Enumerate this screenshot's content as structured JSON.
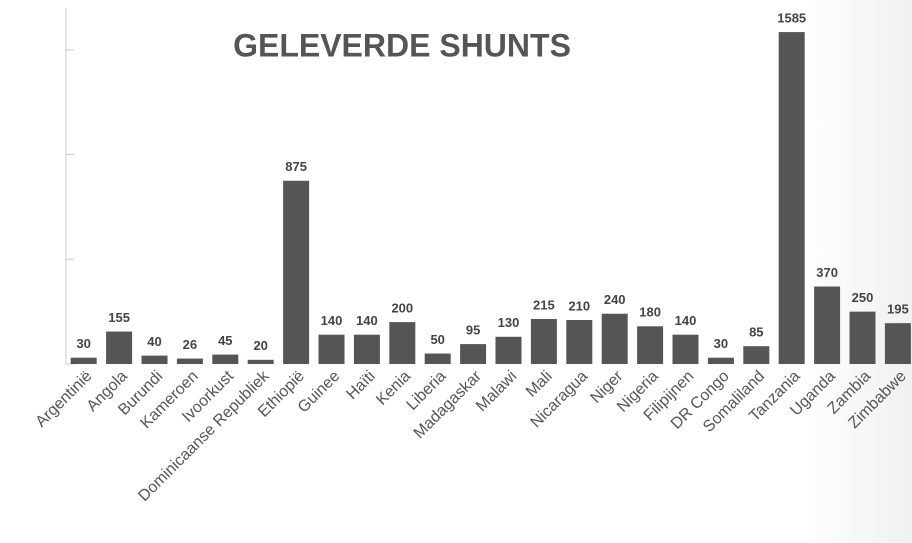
{
  "chart_data": {
    "type": "bar",
    "title": "GELEVERDE SHUNTS",
    "categories": [
      "Argentinië",
      "Angola",
      "Burundi",
      "Kameroen",
      "Ivoorkust",
      "Dominicaanse Republiek",
      "Ethiopië",
      "Guinee",
      "Haïti",
      "Kenia",
      "Liberia",
      "Madagaskar",
      "Malawi",
      "Mali",
      "Nicaragua",
      "Niger",
      "Nigeria",
      "Filipijnen",
      "DR Congo",
      "Somaliland",
      "Tanzania",
      "Uganda",
      "Zambia",
      "Zimbabwe"
    ],
    "values": [
      30,
      155,
      40,
      26,
      45,
      20,
      875,
      140,
      140,
      200,
      50,
      95,
      130,
      215,
      210,
      240,
      180,
      140,
      30,
      85,
      1585,
      370,
      250,
      195
    ],
    "color": "#555555",
    "ylim": [
      0,
      1700
    ],
    "yticks": [
      0,
      500,
      1000,
      1500
    ],
    "grid": false
  }
}
